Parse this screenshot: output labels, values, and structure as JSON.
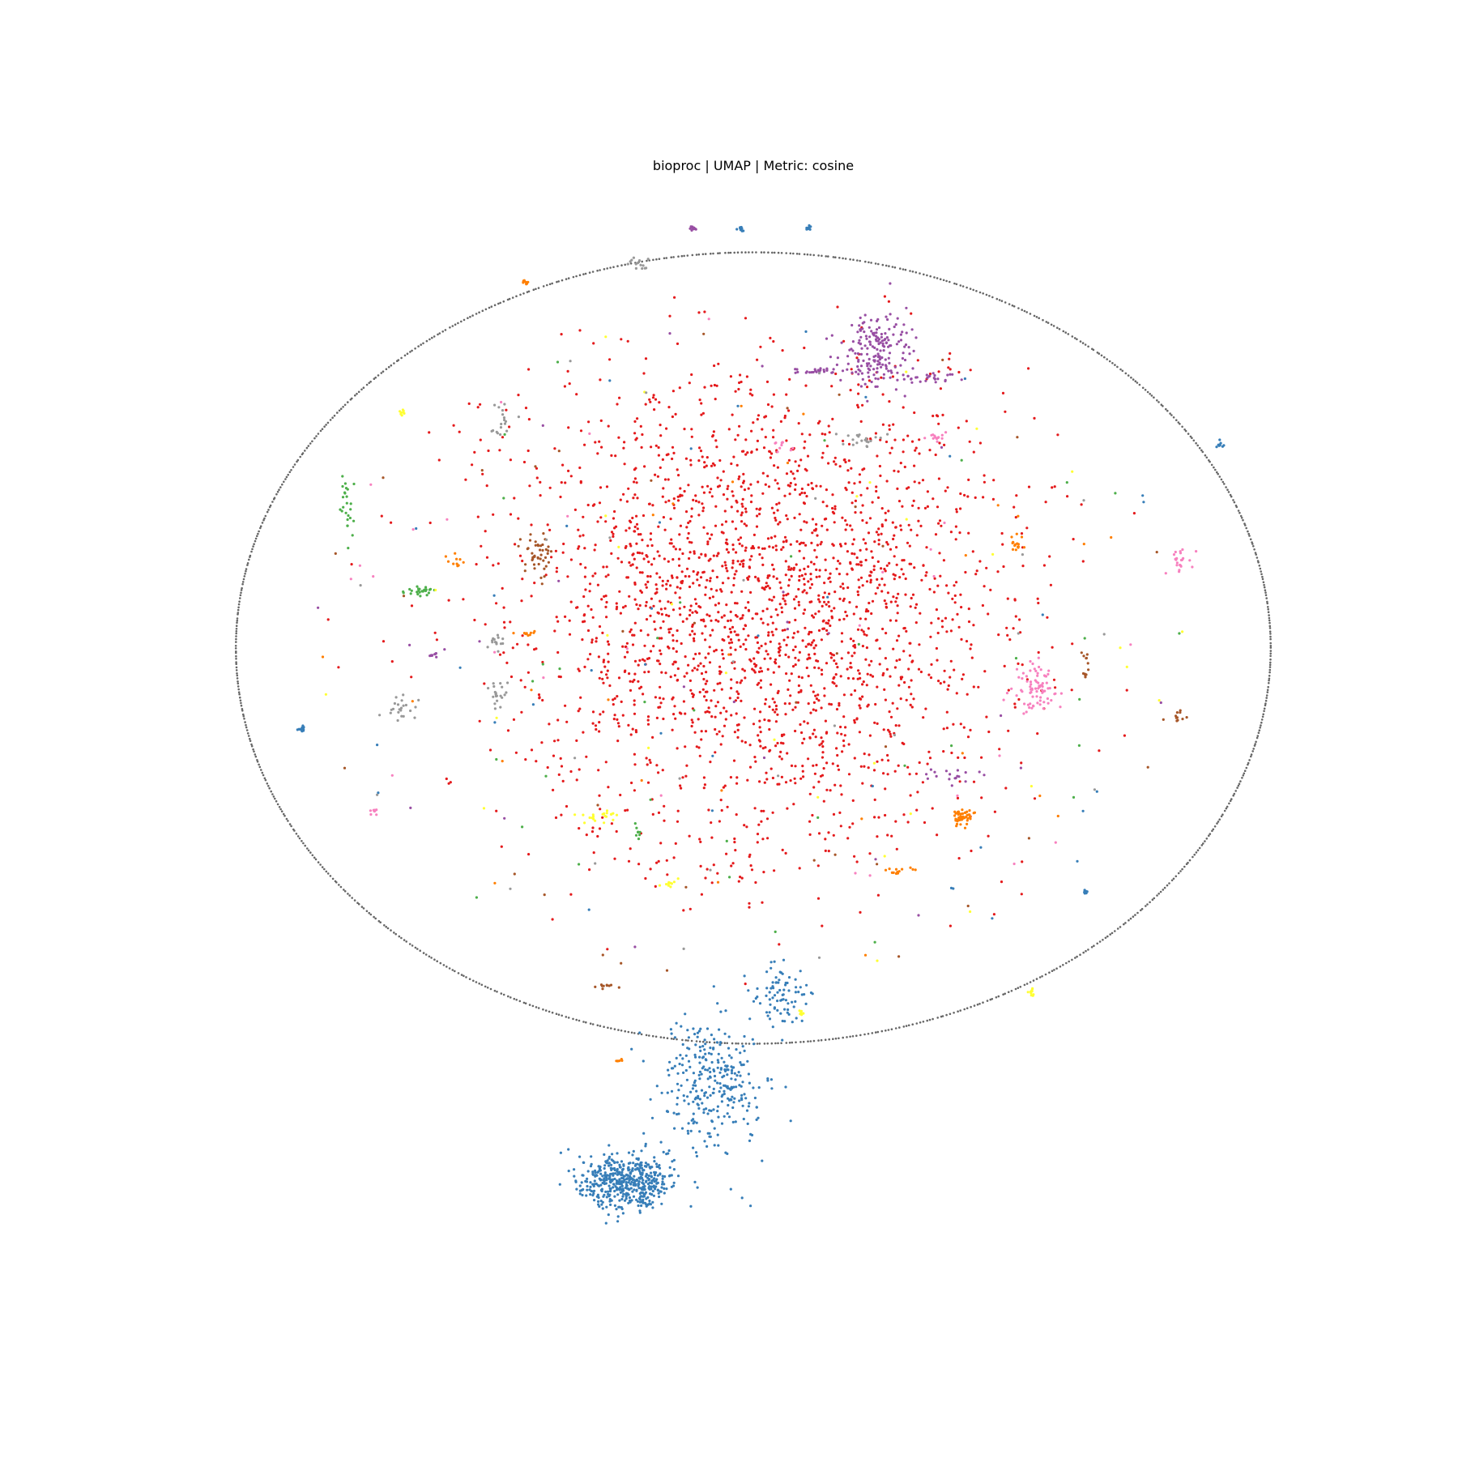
{
  "chart_data": {
    "type": "scatter",
    "title": "bioproc | UMAP | Metric: cosine",
    "axes_visible": false,
    "grid": false,
    "legend": "none",
    "xlim": [
      -10,
      10
    ],
    "ylim": [
      -10,
      10
    ],
    "boundary_ring": {
      "center": [
        0,
        0
      ],
      "radii": [
        7.65,
        5.85
      ],
      "color": "#666666"
    },
    "colors": {
      "red": "#e41a1c",
      "blue": "#377eb8",
      "green": "#4daf4a",
      "purple": "#984ea3",
      "orange": "#ff7f00",
      "yellow": "#ffff33",
      "brown": "#a65628",
      "pink": "#f781bf",
      "gray": "#999999"
    },
    "clusters": [
      {
        "color": "red",
        "center": [
          0.1,
          0.6
        ],
        "spread": [
          3.4,
          3.6
        ],
        "count": 2400
      },
      {
        "color": "blue",
        "center": [
          -1.9,
          -7.9
        ],
        "spread": [
          0.7,
          0.4
        ],
        "count": 500
      },
      {
        "color": "blue",
        "center": [
          -0.6,
          -6.4
        ],
        "spread": [
          0.8,
          1.0
        ],
        "count": 300
      },
      {
        "color": "blue",
        "center": [
          0.4,
          -5.1
        ],
        "spread": [
          0.4,
          0.5
        ],
        "count": 80
      },
      {
        "color": "purple",
        "center": [
          1.8,
          4.4
        ],
        "spread": [
          0.5,
          0.55
        ],
        "count": 180
      },
      {
        "color": "purple",
        "center": [
          0.9,
          4.1
        ],
        "spread": [
          0.5,
          0.05
        ],
        "count": 30
      },
      {
        "color": "purple",
        "center": [
          2.6,
          4.0
        ],
        "spread": [
          0.6,
          0.07
        ],
        "count": 30
      },
      {
        "color": "pink",
        "center": [
          4.2,
          -0.6
        ],
        "spread": [
          0.3,
          0.35
        ],
        "count": 80
      },
      {
        "color": "orange",
        "center": [
          3.1,
          -2.5
        ],
        "spread": [
          0.2,
          0.12
        ],
        "count": 50
      },
      {
        "color": "brown",
        "center": [
          -3.2,
          1.4
        ],
        "spread": [
          0.25,
          0.35
        ],
        "count": 45
      },
      {
        "color": "green",
        "center": [
          -6.0,
          2.1
        ],
        "spread": [
          0.1,
          0.5
        ],
        "count": 25
      },
      {
        "color": "green",
        "center": [
          -4.9,
          0.85
        ],
        "spread": [
          0.3,
          0.08
        ],
        "count": 25
      },
      {
        "color": "gray",
        "center": [
          -5.2,
          -0.9
        ],
        "spread": [
          0.3,
          0.2
        ],
        "count": 22
      },
      {
        "color": "gray",
        "center": [
          -3.8,
          -0.7
        ],
        "spread": [
          0.2,
          0.25
        ],
        "count": 20
      },
      {
        "color": "gray",
        "center": [
          -3.7,
          3.3
        ],
        "spread": [
          0.15,
          0.3
        ],
        "count": 18
      },
      {
        "color": "gray",
        "center": [
          -3.8,
          0.1
        ],
        "spread": [
          0.15,
          0.2
        ],
        "count": 14
      },
      {
        "color": "gray",
        "center": [
          1.6,
          3.1
        ],
        "spread": [
          0.4,
          0.15
        ],
        "count": 20
      },
      {
        "color": "gray",
        "center": [
          -1.7,
          5.7
        ],
        "spread": [
          0.15,
          0.1
        ],
        "count": 14
      },
      {
        "color": "yellow",
        "center": [
          -2.3,
          -2.5
        ],
        "spread": [
          0.3,
          0.12
        ],
        "count": 22
      },
      {
        "color": "yellow",
        "center": [
          -1.2,
          -3.5
        ],
        "spread": [
          0.15,
          0.07
        ],
        "count": 10
      },
      {
        "color": "pink",
        "center": [
          6.3,
          1.3
        ],
        "spread": [
          0.15,
          0.15
        ],
        "count": 22
      },
      {
        "color": "pink",
        "center": [
          2.7,
          3.1
        ],
        "spread": [
          0.15,
          0.08
        ],
        "count": 14
      },
      {
        "color": "pink",
        "center": [
          0.4,
          3.0
        ],
        "spread": [
          0.15,
          0.08
        ],
        "count": 10
      },
      {
        "color": "orange",
        "center": [
          3.9,
          1.6
        ],
        "spread": [
          0.15,
          0.2
        ],
        "count": 16
      },
      {
        "color": "orange",
        "center": [
          2.2,
          -3.3
        ],
        "spread": [
          0.25,
          0.06
        ],
        "count": 14
      },
      {
        "color": "orange",
        "center": [
          -4.4,
          1.3
        ],
        "spread": [
          0.12,
          0.12
        ],
        "count": 10
      },
      {
        "color": "orange",
        "center": [
          -3.4,
          0.2
        ],
        "spread": [
          0.2,
          0.07
        ],
        "count": 10
      },
      {
        "color": "brown",
        "center": [
          4.9,
          -0.3
        ],
        "spread": [
          0.08,
          0.3
        ],
        "count": 12
      },
      {
        "color": "brown",
        "center": [
          -2.2,
          -5.0
        ],
        "spread": [
          0.2,
          0.05
        ],
        "count": 10
      },
      {
        "color": "purple",
        "center": [
          -4.7,
          -0.1
        ],
        "spread": [
          0.15,
          0.06
        ],
        "count": 10
      },
      {
        "color": "purple",
        "center": [
          2.8,
          -1.9
        ],
        "spread": [
          0.6,
          0.12
        ],
        "count": 18
      },
      {
        "color": "blue",
        "center": [
          -6.7,
          -1.2
        ],
        "spread": [
          0.07,
          0.05
        ],
        "count": 12
      },
      {
        "color": "blue",
        "center": [
          4.9,
          -3.6
        ],
        "spread": [
          0.07,
          0.05
        ],
        "count": 10
      },
      {
        "color": "blue",
        "center": [
          6.9,
          3.0
        ],
        "spread": [
          0.07,
          0.05
        ],
        "count": 10
      },
      {
        "color": "brown",
        "center": [
          6.3,
          -1.0
        ],
        "spread": [
          0.1,
          0.1
        ],
        "count": 10
      },
      {
        "color": "yellow",
        "center": [
          4.1,
          -5.1
        ],
        "spread": [
          0.07,
          0.06
        ],
        "count": 10
      },
      {
        "color": "green",
        "center": [
          -1.7,
          -2.7
        ],
        "spread": [
          0.05,
          0.12
        ],
        "count": 8
      },
      {
        "color": "blue",
        "center": [
          -0.2,
          6.2
        ],
        "spread": [
          0.06,
          0.04
        ],
        "count": 10
      },
      {
        "color": "blue",
        "center": [
          0.8,
          6.2
        ],
        "spread": [
          0.06,
          0.04
        ],
        "count": 8
      },
      {
        "color": "purple",
        "center": [
          -0.9,
          6.2
        ],
        "spread": [
          0.06,
          0.04
        ],
        "count": 10
      },
      {
        "color": "orange",
        "center": [
          -3.4,
          5.4
        ],
        "spread": [
          0.08,
          0.05
        ],
        "count": 8
      },
      {
        "color": "pink",
        "center": [
          -5.6,
          -2.4
        ],
        "spread": [
          0.08,
          0.06
        ],
        "count": 8
      },
      {
        "color": "yellow",
        "center": [
          -5.2,
          3.5
        ],
        "spread": [
          0.06,
          0.05
        ],
        "count": 8
      },
      {
        "color": "orange",
        "center": [
          -2.0,
          -6.1
        ],
        "spread": [
          0.06,
          0.03
        ],
        "count": 6
      },
      {
        "color": "yellow",
        "center": [
          0.7,
          -5.4
        ],
        "spread": [
          0.05,
          0.05
        ],
        "count": 6
      }
    ],
    "scattered_points": {
      "count": 240,
      "center": [
        0,
        0
      ],
      "radii": [
        6.5,
        4.9
      ]
    }
  }
}
